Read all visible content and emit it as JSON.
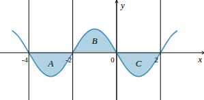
{
  "chart_data": {
    "type": "line",
    "x_label": "x",
    "y_label": "y",
    "x": [
      -4.75,
      -4.5,
      -4.25,
      -4,
      -3.75,
      -3.5,
      -3.25,
      -3,
      -2.75,
      -2.5,
      -2.25,
      -2,
      -1.75,
      -1.5,
      -1.25,
      -1,
      -0.75,
      -0.5,
      -0.25,
      0,
      0.25,
      0.5,
      0.75,
      1,
      1.25,
      1.5,
      1.75,
      2,
      2.25,
      2.5,
      2.75
    ],
    "values": [
      0.92,
      0.71,
      0.38,
      0,
      -0.38,
      -0.71,
      -0.92,
      -1,
      -0.92,
      -0.71,
      -0.38,
      0,
      0.38,
      0.71,
      0.92,
      1,
      0.92,
      0.71,
      0.38,
      0,
      -0.38,
      -0.71,
      -0.92,
      -1,
      -0.92,
      -0.71,
      -0.38,
      0,
      0.38,
      0.71,
      0.92
    ],
    "shaded_range": [
      -4,
      2
    ],
    "annotations": [
      {
        "text": "A",
        "x": -3,
        "y": -0.45
      },
      {
        "text": "B",
        "x": -1,
        "y": 0.5
      },
      {
        "text": "C",
        "x": 1,
        "y": -0.45
      }
    ],
    "color": "#3a8fb7",
    "xlim": [
      -5.3,
      4
    ],
    "ylim": [
      -2,
      2.2
    ],
    "xticks": [
      -4,
      -2,
      0,
      2
    ],
    "tick_labels": "x",
    "grid": false
  }
}
